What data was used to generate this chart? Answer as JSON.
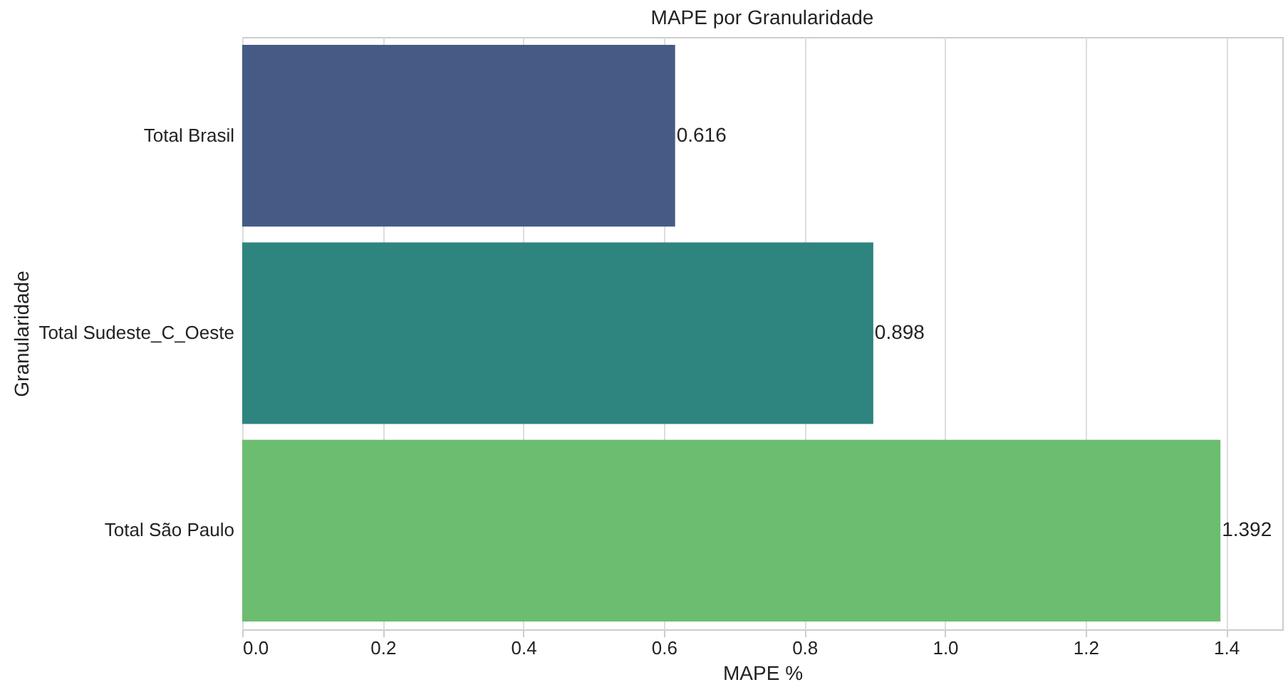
{
  "chart_data": {
    "type": "bar",
    "orientation": "horizontal",
    "title": "MAPE por Granularidade",
    "xlabel": "MAPE %",
    "ylabel": "Granularidade",
    "categories": [
      "Total Brasil",
      "Total Sudeste_C_Oeste",
      "Total São Paulo"
    ],
    "values": [
      0.616,
      0.898,
      1.392
    ],
    "colors": [
      "#455a85",
      "#2e847f",
      "#6cbd6f"
    ],
    "xlim": [
      0,
      1.48
    ],
    "xticks": [
      {
        "value": 0,
        "label": "0.0"
      },
      0.2,
      0.4,
      0.6,
      0.8,
      {
        "value": 1,
        "label": "1.0"
      },
      1.2,
      1.4
    ],
    "grid": "x",
    "data_labels": true
  }
}
